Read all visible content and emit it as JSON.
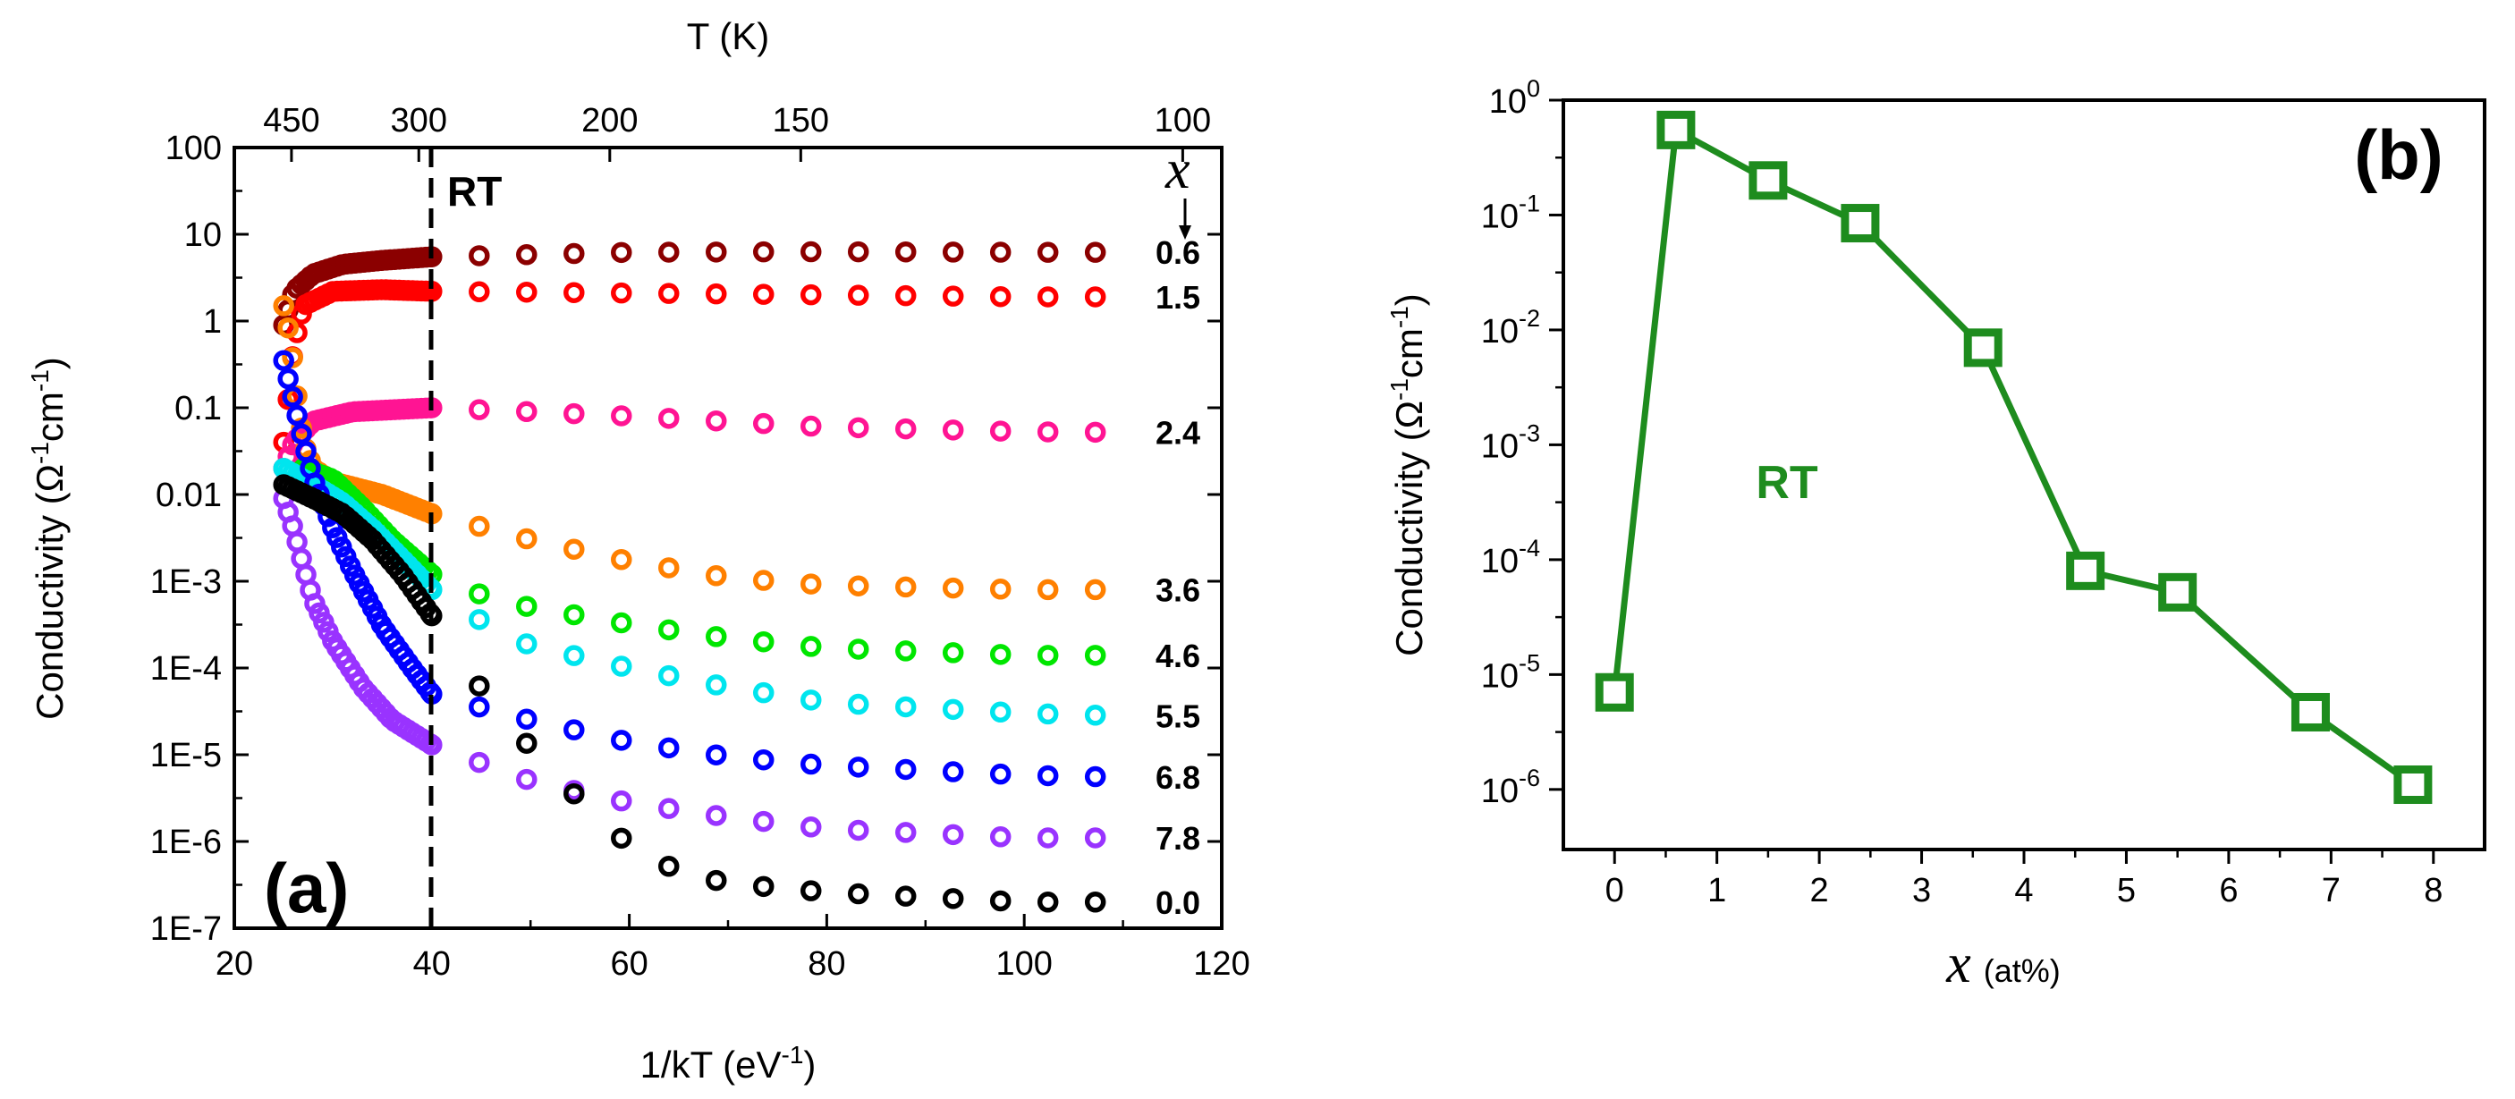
{
  "chart_data": [
    {
      "panel": "(a)",
      "type": "scatter",
      "xlabel": "1/kT (eV",
      "xlabel_sup": "-1",
      "xlabel_end": ")",
      "ylabel_parts": {
        "prefix": "Conductivity (",
        "omega": "Ω",
        "sup1": "-1",
        "cm": "cm",
        "sup2": "-1",
        "suffix": ")"
      },
      "xlim": [
        20,
        120
      ],
      "ylim": [
        1e-07,
        100
      ],
      "yscale": "log",
      "x_ticks": [
        20,
        40,
        60,
        80,
        100,
        120
      ],
      "y_tick_labels": [
        "100",
        "10",
        "1",
        "0.1",
        "0.01",
        "1E-3",
        "1E-4",
        "1E-5",
        "1E-6",
        "1E-7"
      ],
      "top_axis": {
        "label": "T (K)",
        "tick_labels": [
          "450",
          "300",
          "200",
          "150",
          "100"
        ],
        "tick_values_K": [
          450,
          300,
          200,
          150,
          100
        ]
      },
      "vline": {
        "x": 40,
        "label": "RT"
      },
      "legend_symbol": "x",
      "series": [
        {
          "name": "0.6",
          "color": "#8b0000",
          "start_x": 25,
          "points": [
            [
              25,
              0.9
            ],
            [
              26,
              2.2
            ],
            [
              28,
              3.5
            ],
            [
              31,
              4.5
            ],
            [
              35,
              5.0
            ],
            [
              40,
              5.5
            ],
            [
              60,
              6.2
            ],
            [
              80,
              6.3
            ],
            [
              100,
              6.2
            ],
            [
              110,
              6.2
            ]
          ]
        },
        {
          "name": "1.5",
          "color": "#ff0000",
          "start_x": 25,
          "points": [
            [
              25,
              0.04
            ],
            [
              26,
              0.5
            ],
            [
              27,
              1.5
            ],
            [
              30,
              2.2
            ],
            [
              35,
              2.3
            ],
            [
              40,
              2.2
            ],
            [
              60,
              2.1
            ],
            [
              80,
              2.0
            ],
            [
              100,
              1.9
            ],
            [
              110,
              1.9
            ]
          ]
        },
        {
          "name": "2.4",
          "color": "#ff1493",
          "start_x": 25,
          "points": [
            [
              25,
              0.02
            ],
            [
              26,
              0.04
            ],
            [
              28,
              0.07
            ],
            [
              32,
              0.09
            ],
            [
              40,
              0.1
            ],
            [
              50,
              0.09
            ],
            [
              60,
              0.08
            ],
            [
              80,
              0.06
            ],
            [
              100,
              0.053
            ],
            [
              110,
              0.052
            ]
          ]
        },
        {
          "name": "3.6",
          "color": "#ff8000",
          "start_x": 25,
          "points": [
            [
              25,
              1.5
            ],
            [
              25.7,
              0.6
            ],
            [
              26.3,
              0.15
            ],
            [
              27,
              0.04
            ],
            [
              28,
              0.02
            ],
            [
              30,
              0.014
            ],
            [
              35,
              0.01
            ],
            [
              40,
              0.006
            ],
            [
              50,
              0.003
            ],
            [
              60,
              0.0017
            ],
            [
              70,
              0.0011
            ],
            [
              80,
              0.0009
            ],
            [
              100,
              0.0008
            ],
            [
              110,
              0.0008
            ]
          ]
        },
        {
          "name": "4.6",
          "color": "#00e600",
          "start_x": 27,
          "points": [
            [
              27,
              0.02
            ],
            [
              30,
              0.015
            ],
            [
              33,
              0.007
            ],
            [
              36,
              0.003
            ],
            [
              40,
              0.0012
            ],
            [
              45,
              0.0007
            ],
            [
              50,
              0.0005
            ],
            [
              60,
              0.00032
            ],
            [
              70,
              0.00022
            ],
            [
              80,
              0.00017
            ],
            [
              100,
              0.00014
            ],
            [
              110,
              0.00014
            ]
          ]
        },
        {
          "name": "5.5",
          "color": "#00e5ee",
          "start_x": 25,
          "points": [
            [
              25,
              0.02
            ],
            [
              28,
              0.013
            ],
            [
              31,
              0.008
            ],
            [
              34,
              0.004
            ],
            [
              37,
              0.0018
            ],
            [
              40,
              0.0008
            ],
            [
              45,
              0.00035
            ],
            [
              50,
              0.00018
            ],
            [
              60,
              0.0001
            ],
            [
              70,
              6e-05
            ],
            [
              80,
              4e-05
            ],
            [
              100,
              3e-05
            ],
            [
              110,
              2.8e-05
            ]
          ]
        },
        {
          "name": "6.8",
          "color": "#0000ff",
          "start_x": 25,
          "points": [
            [
              25,
              0.35
            ],
            [
              26,
              0.12
            ],
            [
              27,
              0.04
            ],
            [
              28,
              0.015
            ],
            [
              30,
              0.004
            ],
            [
              32,
              0.0013
            ],
            [
              35,
              0.0003
            ],
            [
              38,
              0.0001
            ],
            [
              40,
              5e-05
            ],
            [
              45,
              3.5e-05
            ],
            [
              50,
              2.5e-05
            ],
            [
              60,
              1.4e-05
            ],
            [
              70,
              9.5e-06
            ],
            [
              80,
              7.5e-06
            ],
            [
              100,
              5.8e-06
            ],
            [
              110,
              5.5e-06
            ]
          ]
        },
        {
          "name": "7.8",
          "color": "#9933ff",
          "start_x": 25,
          "points": [
            [
              25,
              0.009
            ],
            [
              26,
              0.004
            ],
            [
              27,
              0.0015
            ],
            [
              28,
              0.0006
            ],
            [
              30,
              0.0002
            ],
            [
              33,
              6e-05
            ],
            [
              36,
              2.5e-05
            ],
            [
              40,
              1.3e-05
            ],
            [
              45,
              8e-06
            ],
            [
              50,
              5e-06
            ],
            [
              60,
              2.8e-06
            ],
            [
              70,
              1.9e-06
            ],
            [
              80,
              1.4e-06
            ],
            [
              100,
              1.1e-06
            ],
            [
              110,
              1.1e-06
            ]
          ]
        },
        {
          "name": "0.0",
          "color": "#000000",
          "start_x": 25,
          "points": [
            [
              25,
              0.013
            ],
            [
              28,
              0.009
            ],
            [
              31,
              0.006
            ],
            [
              34,
              0.003
            ],
            [
              37,
              0.0012
            ],
            [
              40,
              0.0004
            ],
            [
              43,
              0.00012
            ],
            [
              46,
              4e-05
            ],
            [
              50,
              1.2e-05
            ],
            [
              55,
              3e-06
            ],
            [
              60,
              9e-07
            ],
            [
              65,
              4.5e-07
            ],
            [
              70,
              3.3e-07
            ],
            [
              80,
              2.6e-07
            ],
            [
              100,
              2e-07
            ],
            [
              110,
              2e-07
            ]
          ]
        }
      ]
    },
    {
      "panel": "(b)",
      "type": "line",
      "annotation": "RT",
      "xlabel_symbol": "x",
      "xlabel_unit": "(at%)",
      "ylabel_parts": {
        "prefix": "Conductivity (",
        "omega": "Ω",
        "sup1": "-1",
        "cm": "cm",
        "sup2": "-1",
        "suffix": ")"
      },
      "xlim": [
        -0.5,
        8.5
      ],
      "ylim": [
        3e-07,
        1.0
      ],
      "yscale": "log",
      "x_ticks": [
        0,
        1,
        2,
        3,
        4,
        5,
        6,
        7,
        8
      ],
      "y_ticks": [
        {
          "base": "10",
          "exp": "0"
        },
        {
          "base": "10",
          "exp": "-1"
        },
        {
          "base": "10",
          "exp": "-2"
        },
        {
          "base": "10",
          "exp": "-3"
        },
        {
          "base": "10",
          "exp": "-4"
        },
        {
          "base": "10",
          "exp": "-5"
        },
        {
          "base": "10",
          "exp": "-6"
        }
      ],
      "color": "#1e8c1e",
      "x": [
        0,
        0.6,
        1.5,
        2.4,
        3.6,
        4.6,
        5.5,
        6.8,
        7.8
      ],
      "y": [
        7e-06,
        0.55,
        0.2,
        0.085,
        0.007,
        8e-05,
        5.2e-05,
        4.7e-06,
        1.1e-06
      ]
    }
  ]
}
